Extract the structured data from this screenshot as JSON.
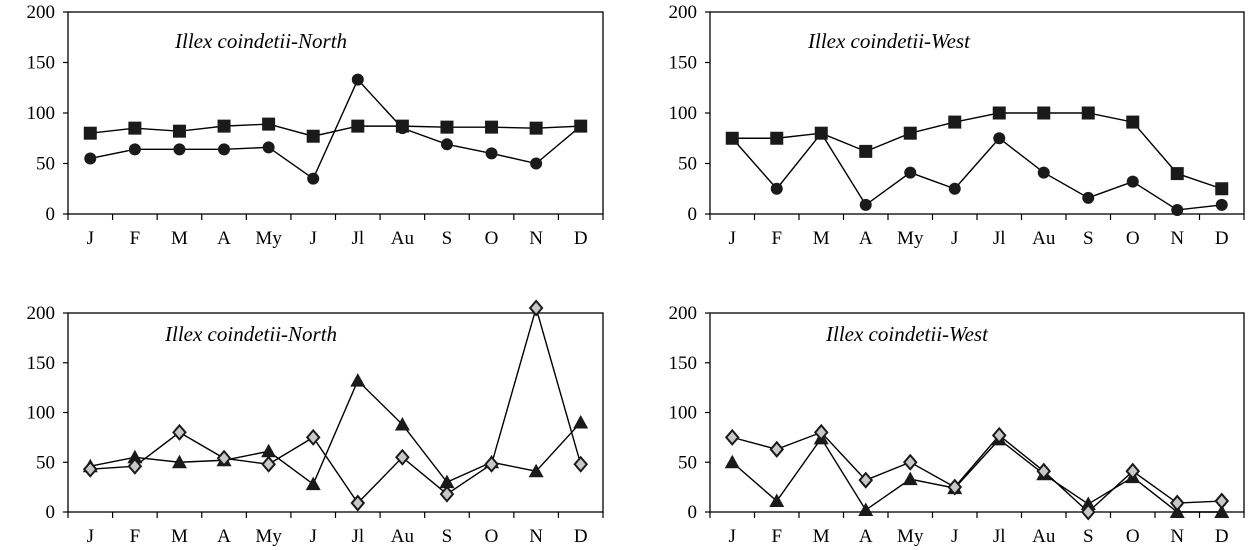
{
  "chart_data": [
    {
      "type": "line",
      "title": "Illex coindetii-North",
      "categories": [
        "J",
        "F",
        "M",
        "A",
        "My",
        "J",
        "Jl",
        "Au",
        "S",
        "O",
        "N",
        "D"
      ],
      "ylim": [
        0,
        200
      ],
      "yticks": [
        0,
        50,
        100,
        150,
        200
      ],
      "grid": false,
      "series": [
        {
          "marker": "square",
          "values": [
            80,
            85,
            82,
            87,
            89,
            77,
            87,
            87,
            86,
            86,
            85,
            87
          ]
        },
        {
          "marker": "circle",
          "values": [
            55,
            64,
            64,
            64,
            66,
            35,
            133,
            85,
            69,
            60,
            50,
            87
          ]
        }
      ]
    },
    {
      "type": "line",
      "title": "Illex coindetii-West",
      "categories": [
        "J",
        "F",
        "M",
        "A",
        "My",
        "J",
        "Jl",
        "Au",
        "S",
        "O",
        "N",
        "D"
      ],
      "ylim": [
        0,
        200
      ],
      "yticks": [
        0,
        50,
        100,
        150,
        200
      ],
      "grid": false,
      "series": [
        {
          "marker": "square",
          "values": [
            75,
            75,
            80,
            62,
            80,
            91,
            100,
            100,
            100,
            91,
            40,
            25
          ]
        },
        {
          "marker": "circle",
          "values": [
            75,
            25,
            80,
            9,
            41,
            25,
            75,
            41,
            16,
            32,
            4,
            9
          ]
        }
      ]
    },
    {
      "type": "line",
      "title": "Illex coindetii-North",
      "categories": [
        "J",
        "F",
        "M",
        "A",
        "My",
        "J",
        "Jl",
        "Au",
        "S",
        "O",
        "N",
        "D"
      ],
      "ylim": [
        0,
        200
      ],
      "yticks": [
        0,
        50,
        100,
        150,
        200
      ],
      "grid": false,
      "series": [
        {
          "marker": "triangle",
          "values": [
            46,
            55,
            50,
            52,
            61,
            28,
            132,
            88,
            30,
            50,
            41,
            90
          ]
        },
        {
          "marker": "diamond",
          "values": [
            43,
            46,
            80,
            54,
            48,
            75,
            9,
            55,
            18,
            48,
            205,
            48
          ]
        }
      ]
    },
    {
      "type": "line",
      "title": "Illex coindetii-West",
      "categories": [
        "J",
        "F",
        "M",
        "A",
        "My",
        "J",
        "Jl",
        "Au",
        "S",
        "O",
        "N",
        "D"
      ],
      "ylim": [
        0,
        200
      ],
      "yticks": [
        0,
        50,
        100,
        150,
        200
      ],
      "grid": false,
      "series": [
        {
          "marker": "triangle",
          "values": [
            50,
            11,
            74,
            2,
            33,
            24,
            73,
            38,
            8,
            35,
            0,
            0
          ]
        },
        {
          "marker": "diamond",
          "values": [
            75,
            63,
            80,
            32,
            50,
            25,
            77,
            41,
            0,
            41,
            9,
            11
          ]
        }
      ]
    }
  ]
}
